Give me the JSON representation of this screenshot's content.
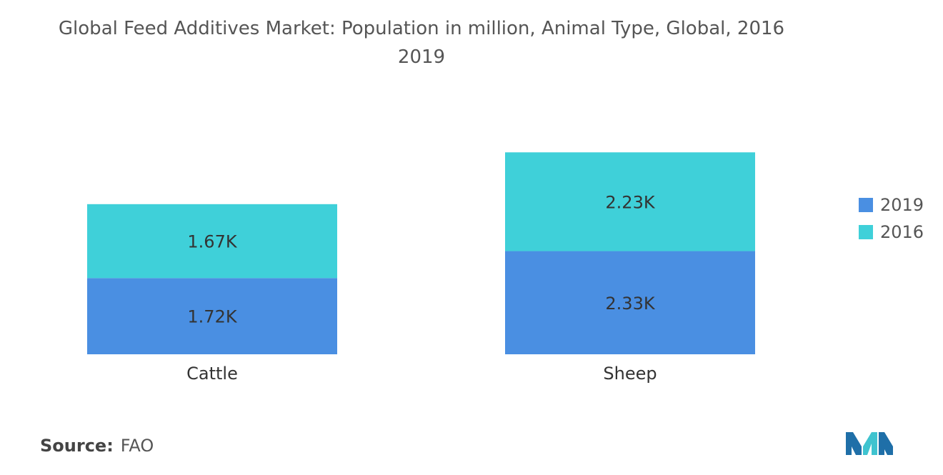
{
  "title_lines": [
    "Global Feed Additives Market: Population in million, Animal Type, Global, 2016",
    "2019"
  ],
  "chart_data": {
    "type": "bar",
    "stacked": true,
    "categories": [
      "Cattle",
      "Sheep"
    ],
    "series": [
      {
        "name": "2019",
        "values": [
          1.72,
          2.33
        ],
        "labels": [
          "1.72K",
          "2.33K"
        ],
        "color": "#4A8FE2"
      },
      {
        "name": "2016",
        "values": [
          1.67,
          2.23
        ],
        "labels": [
          "1.67K",
          "2.23K"
        ],
        "color": "#3FD0D9"
      }
    ],
    "y_axis_visible": false,
    "grid": false,
    "legend_position": "right"
  },
  "legend": {
    "items": [
      {
        "label": "2019",
        "color": "#4A8FE2"
      },
      {
        "label": "2016",
        "color": "#3FD0D9"
      }
    ]
  },
  "source": {
    "key": "Source:",
    "value": "FAO"
  },
  "logo": {
    "icon": "mordor-intelligence-logo-icon",
    "colors": [
      "#1F6FA8",
      "#3FC3CF"
    ]
  }
}
